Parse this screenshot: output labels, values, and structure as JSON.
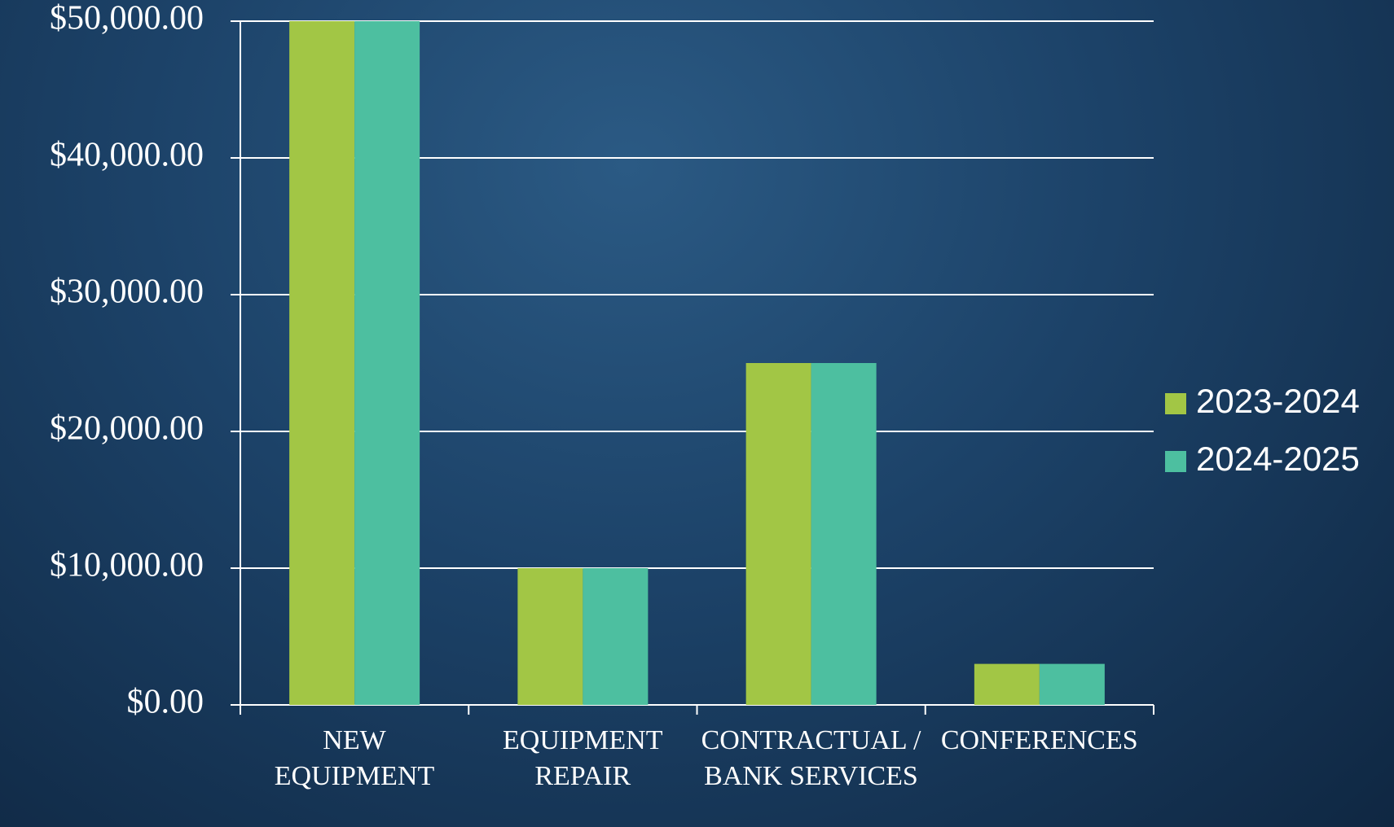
{
  "chart_data": {
    "type": "bar",
    "categories": [
      "NEW EQUIPMENT",
      "EQUIPMENT REPAIR",
      "CONTRACTUAL / BANK SERVICES",
      "CONFERENCES"
    ],
    "series": [
      {
        "name": "2023-2024",
        "color": "#a2c645",
        "values": [
          50000,
          10000,
          25000,
          3000
        ]
      },
      {
        "name": "2024-2025",
        "color": "#4dbfa0",
        "values": [
          50000,
          10000,
          25000,
          3000
        ]
      }
    ],
    "ylim": [
      0,
      50000
    ],
    "yticks": [
      {
        "value": 0,
        "label": "$0.00"
      },
      {
        "value": 10000,
        "label": "$10,000.00"
      },
      {
        "value": 20000,
        "label": "$20,000.00"
      },
      {
        "value": 30000,
        "label": "$30,000.00"
      },
      {
        "value": 40000,
        "label": "$40,000.00"
      },
      {
        "value": 50000,
        "label": "$50,000.00"
      }
    ],
    "grid": true,
    "legend": "right"
  }
}
